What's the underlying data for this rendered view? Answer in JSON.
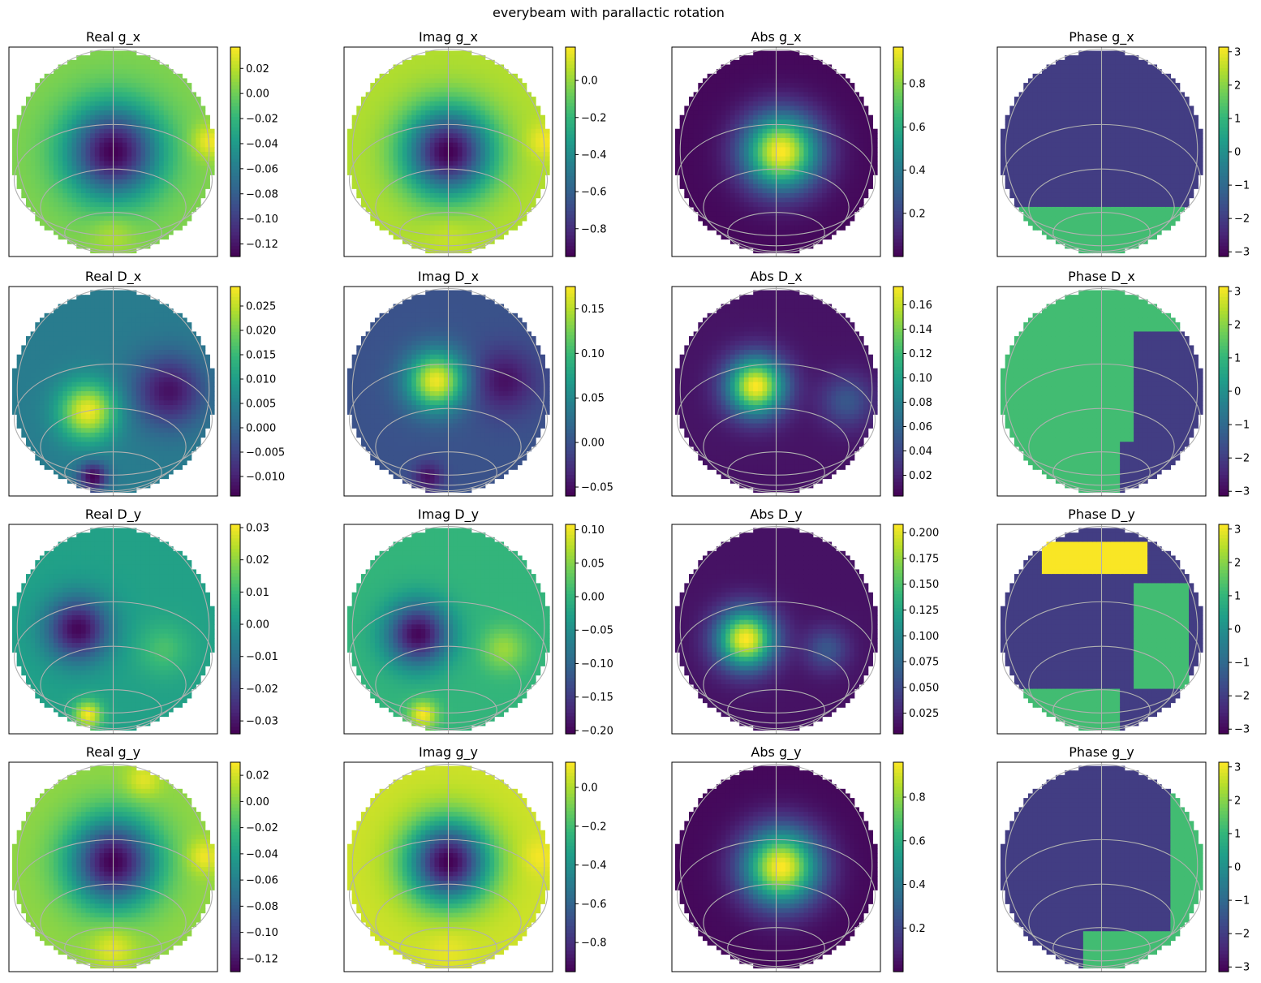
{
  "figure": {
    "suptitle": "everybeam with parallactic rotation"
  },
  "colormap": {
    "name": "viridis",
    "stops": [
      "#440154",
      "#482878",
      "#3e4989",
      "#31688e",
      "#26828e",
      "#1f9e89",
      "#35b779",
      "#6ece58",
      "#b5de2b",
      "#fde725"
    ],
    "grid_color": "#b0b0b0",
    "background": "#ffffff"
  },
  "chart_data": [
    {
      "type": "heatmap",
      "title": "Real g_x",
      "vmin": -0.13,
      "vmax": 0.037,
      "ticks": [
        "0.02",
        "0.00",
        "−0.02",
        "−0.04",
        "−0.06",
        "−0.08",
        "−0.10",
        "−0.12"
      ],
      "tick_values": [
        0.02,
        0.0,
        -0.02,
        -0.04,
        -0.06,
        -0.08,
        -0.1,
        -0.12
      ],
      "blobs": [
        {
          "x": 0.0,
          "y": 0.0,
          "s": 0.32,
          "v": -0.13
        },
        {
          "x": 0.95,
          "y": 0.1,
          "s": 0.12,
          "v": 0.035
        },
        {
          "x": 0.0,
          "y": -0.8,
          "s": 0.15,
          "v": 0.02
        }
      ],
      "base": 0.005
    },
    {
      "type": "heatmap",
      "title": "Imag g_x",
      "vmin": -0.95,
      "vmax": 0.18,
      "ticks": [
        "0.0",
        "−0.2",
        "−0.4",
        "−0.6",
        "−0.8"
      ],
      "tick_values": [
        0.0,
        -0.2,
        -0.4,
        -0.6,
        -0.8
      ],
      "blobs": [
        {
          "x": 0.0,
          "y": 0.0,
          "s": 0.3,
          "v": -0.95
        },
        {
          "x": 0.95,
          "y": 0.1,
          "s": 0.12,
          "v": 0.17
        },
        {
          "x": 0.0,
          "y": -0.8,
          "s": 0.15,
          "v": 0.1
        }
      ],
      "base": 0.05
    },
    {
      "type": "heatmap",
      "title": "Abs g_x",
      "vmin": 0.0,
      "vmax": 0.97,
      "ticks": [
        "0.8",
        "0.6",
        "0.4",
        "0.2"
      ],
      "tick_values": [
        0.8,
        0.6,
        0.4,
        0.2
      ],
      "blobs": [
        {
          "x": 0.05,
          "y": 0.0,
          "s": 0.26,
          "v": 0.97
        }
      ],
      "base": 0.02
    },
    {
      "type": "heatmap",
      "title": "Phase g_x",
      "vmin": -3.14,
      "vmax": 3.14,
      "ticks": [
        "3",
        "2",
        "1",
        "0",
        "−1",
        "−2",
        "−3"
      ],
      "tick_values": [
        3,
        2,
        1,
        0,
        -1,
        -2,
        -3
      ],
      "regions": [
        {
          "x0": -0.75,
          "x1": 0.7,
          "y0": -0.55,
          "y1": 0.85,
          "v": -2.0
        },
        {
          "x0": -1.0,
          "x1": 1.0,
          "y0": -1.0,
          "y1": -0.55,
          "v": 1.2
        }
      ],
      "base": -2.0
    },
    {
      "type": "heatmap",
      "title": "Real D_x",
      "vmin": -0.014,
      "vmax": 0.029,
      "ticks": [
        "0.025",
        "0.020",
        "0.015",
        "0.010",
        "0.005",
        "0.000",
        "−0.005",
        "−0.010"
      ],
      "tick_values": [
        0.025,
        0.02,
        0.015,
        0.01,
        0.005,
        0.0,
        -0.005,
        -0.01
      ],
      "blobs": [
        {
          "x": -0.25,
          "y": -0.2,
          "s": 0.2,
          "v": 0.028
        },
        {
          "x": 0.55,
          "y": 0.0,
          "s": 0.25,
          "v": -0.012
        },
        {
          "x": -0.2,
          "y": -0.85,
          "s": 0.1,
          "v": -0.014
        }
      ],
      "base": 0.004
    },
    {
      "type": "heatmap",
      "title": "Imag D_x",
      "vmin": -0.06,
      "vmax": 0.175,
      "ticks": [
        "0.15",
        "0.10",
        "0.05",
        "0.00",
        "−0.05"
      ],
      "tick_values": [
        0.15,
        0.1,
        0.05,
        0.0,
        -0.05
      ],
      "blobs": [
        {
          "x": -0.12,
          "y": 0.1,
          "s": 0.2,
          "v": 0.17
        },
        {
          "x": 0.55,
          "y": 0.1,
          "s": 0.22,
          "v": -0.05
        },
        {
          "x": -0.2,
          "y": -0.85,
          "s": 0.1,
          "v": -0.05
        }
      ],
      "base": 0.0
    },
    {
      "type": "heatmap",
      "title": "Abs D_x",
      "vmin": 0.003,
      "vmax": 0.175,
      "ticks": [
        "0.16",
        "0.14",
        "0.12",
        "0.10",
        "0.08",
        "0.06",
        "0.04",
        "0.02"
      ],
      "tick_values": [
        0.16,
        0.14,
        0.12,
        0.1,
        0.08,
        0.06,
        0.04,
        0.02
      ],
      "blobs": [
        {
          "x": -0.2,
          "y": 0.05,
          "s": 0.2,
          "v": 0.175
        },
        {
          "x": 0.7,
          "y": -0.1,
          "s": 0.18,
          "v": 0.05
        }
      ],
      "base": 0.012
    },
    {
      "type": "heatmap",
      "title": "Phase D_x",
      "vmin": -3.14,
      "vmax": 3.14,
      "ticks": [
        "3",
        "2",
        "1",
        "0",
        "−1",
        "−2",
        "−3"
      ],
      "tick_values": [
        3,
        2,
        1,
        0,
        -1,
        -2,
        -3
      ],
      "regions": [
        {
          "x0": 0.3,
          "x1": 1.0,
          "y0": -0.5,
          "y1": 0.6,
          "v": -2.0
        },
        {
          "x0": 0.2,
          "x1": 1.0,
          "y0": -1.0,
          "y1": -0.5,
          "v": -2.0
        }
      ],
      "base": 1.2
    },
    {
      "type": "heatmap",
      "title": "Real D_y",
      "vmin": -0.034,
      "vmax": 0.031,
      "ticks": [
        "0.03",
        "0.02",
        "0.01",
        "0.00",
        "−0.01",
        "−0.02",
        "−0.03"
      ],
      "tick_values": [
        0.03,
        0.02,
        0.01,
        0.0,
        -0.01,
        -0.02,
        -0.03
      ],
      "blobs": [
        {
          "x": -0.35,
          "y": 0.0,
          "s": 0.22,
          "v": -0.033
        },
        {
          "x": 0.5,
          "y": -0.2,
          "s": 0.18,
          "v": 0.012
        },
        {
          "x": -0.25,
          "y": -0.85,
          "s": 0.1,
          "v": 0.03
        }
      ],
      "base": 0.003
    },
    {
      "type": "heatmap",
      "title": "Imag D_y",
      "vmin": -0.205,
      "vmax": 0.108,
      "ticks": [
        "0.10",
        "0.05",
        "0.00",
        "−0.05",
        "−0.10",
        "−0.15",
        "−0.20"
      ],
      "tick_values": [
        0.1,
        0.05,
        0.0,
        -0.05,
        -0.1,
        -0.15,
        -0.2
      ],
      "blobs": [
        {
          "x": -0.3,
          "y": -0.05,
          "s": 0.22,
          "v": -0.2
        },
        {
          "x": 0.55,
          "y": -0.2,
          "s": 0.15,
          "v": 0.06
        },
        {
          "x": -0.25,
          "y": -0.85,
          "s": 0.1,
          "v": 0.105
        }
      ],
      "base": 0.0
    },
    {
      "type": "heatmap",
      "title": "Abs D_y",
      "vmin": 0.005,
      "vmax": 0.208,
      "ticks": [
        "0.200",
        "0.175",
        "0.150",
        "0.125",
        "0.100",
        "0.075",
        "0.050",
        "0.025"
      ],
      "tick_values": [
        0.2,
        0.175,
        0.15,
        0.125,
        0.1,
        0.075,
        0.05,
        0.025
      ],
      "blobs": [
        {
          "x": -0.3,
          "y": -0.1,
          "s": 0.2,
          "v": 0.208
        },
        {
          "x": 0.5,
          "y": -0.2,
          "s": 0.15,
          "v": 0.06
        }
      ],
      "base": 0.015
    },
    {
      "type": "heatmap",
      "title": "Phase D_y",
      "vmin": -3.14,
      "vmax": 3.14,
      "ticks": [
        "3",
        "2",
        "1",
        "0",
        "−1",
        "−2",
        "−3"
      ],
      "tick_values": [
        3,
        2,
        1,
        0,
        -1,
        -2,
        -3
      ],
      "regions": [
        {
          "x0": 0.3,
          "x1": 0.85,
          "y0": -0.6,
          "y1": 0.45,
          "v": 1.2
        },
        {
          "x0": -0.6,
          "x1": 0.45,
          "y0": 0.55,
          "y1": 0.85,
          "v": 3.1
        },
        {
          "x0": -0.8,
          "x1": 0.2,
          "y0": -1.0,
          "y1": -0.6,
          "v": 1.2
        }
      ],
      "base": -2.0
    },
    {
      "type": "heatmap",
      "title": "Real g_y",
      "vmin": -0.13,
      "vmax": 0.03,
      "ticks": [
        "0.02",
        "0.00",
        "−0.02",
        "−0.04",
        "−0.06",
        "−0.08",
        "−0.10",
        "−0.12"
      ],
      "tick_values": [
        0.02,
        0.0,
        -0.02,
        -0.04,
        -0.06,
        -0.08,
        -0.1,
        -0.12
      ],
      "blobs": [
        {
          "x": 0.0,
          "y": 0.05,
          "s": 0.3,
          "v": -0.13
        },
        {
          "x": 0.9,
          "y": 0.1,
          "s": 0.12,
          "v": 0.028
        },
        {
          "x": 0.0,
          "y": -0.8,
          "s": 0.15,
          "v": 0.025
        },
        {
          "x": 0.3,
          "y": 0.85,
          "s": 0.12,
          "v": 0.025
        }
      ],
      "base": 0.003
    },
    {
      "type": "heatmap",
      "title": "Imag g_y",
      "vmin": -0.95,
      "vmax": 0.13,
      "ticks": [
        "0.0",
        "−0.2",
        "−0.4",
        "−0.6",
        "−0.8"
      ],
      "tick_values": [
        0.0,
        -0.2,
        -0.4,
        -0.6,
        -0.8
      ],
      "blobs": [
        {
          "x": 0.0,
          "y": 0.05,
          "s": 0.28,
          "v": -0.95
        },
        {
          "x": 0.9,
          "y": 0.1,
          "s": 0.12,
          "v": 0.12
        },
        {
          "x": 0.0,
          "y": -0.8,
          "s": 0.15,
          "v": 0.1
        }
      ],
      "base": 0.05
    },
    {
      "type": "heatmap",
      "title": "Abs g_y",
      "vmin": 0.0,
      "vmax": 0.96,
      "ticks": [
        "0.8",
        "0.6",
        "0.4",
        "0.2"
      ],
      "tick_values": [
        0.8,
        0.6,
        0.4,
        0.2
      ],
      "blobs": [
        {
          "x": 0.05,
          "y": 0.0,
          "s": 0.26,
          "v": 0.96
        }
      ],
      "base": 0.02
    },
    {
      "type": "heatmap",
      "title": "Phase g_y",
      "vmin": -3.14,
      "vmax": 3.14,
      "ticks": [
        "3",
        "2",
        "1",
        "0",
        "−1",
        "−2",
        "−3"
      ],
      "tick_values": [
        3,
        2,
        1,
        0,
        -1,
        -2,
        -3
      ],
      "regions": [
        {
          "x0": 0.7,
          "x1": 1.0,
          "y0": -0.9,
          "y1": 0.8,
          "v": 1.2
        },
        {
          "x0": -0.2,
          "x1": 0.75,
          "y0": -1.0,
          "y1": -0.65,
          "v": 1.2
        }
      ],
      "base": -2.0
    }
  ]
}
